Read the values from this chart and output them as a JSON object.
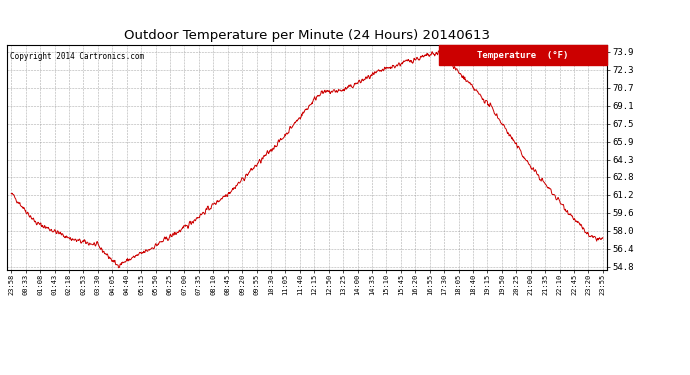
{
  "title": "Outdoor Temperature per Minute (24 Hours) 20140613",
  "copyright_text": "Copyright 2014 Cartronics.com",
  "legend_label": "Temperature  (°F)",
  "line_color": "#cc0000",
  "background_color": "#ffffff",
  "grid_color": "#999999",
  "y_ticks": [
    54.8,
    56.4,
    58.0,
    59.6,
    61.2,
    62.8,
    64.3,
    65.9,
    67.5,
    69.1,
    70.7,
    72.3,
    73.9
  ],
  "x_tick_labels": [
    "23:58",
    "00:33",
    "01:08",
    "01:43",
    "02:18",
    "02:53",
    "03:30",
    "04:05",
    "04:40",
    "05:15",
    "05:50",
    "06:25",
    "07:00",
    "07:35",
    "08:10",
    "08:45",
    "09:20",
    "09:55",
    "10:30",
    "11:05",
    "11:40",
    "12:15",
    "12:50",
    "13:25",
    "14:00",
    "14:35",
    "15:10",
    "15:45",
    "16:20",
    "16:55",
    "17:30",
    "18:05",
    "18:40",
    "19:15",
    "19:50",
    "20:25",
    "21:00",
    "21:35",
    "22:10",
    "22:45",
    "23:20",
    "23:55"
  ],
  "ylim": [
    54.5,
    74.5
  ],
  "legend_bg": "#cc0000",
  "legend_text_color": "#ffffff"
}
